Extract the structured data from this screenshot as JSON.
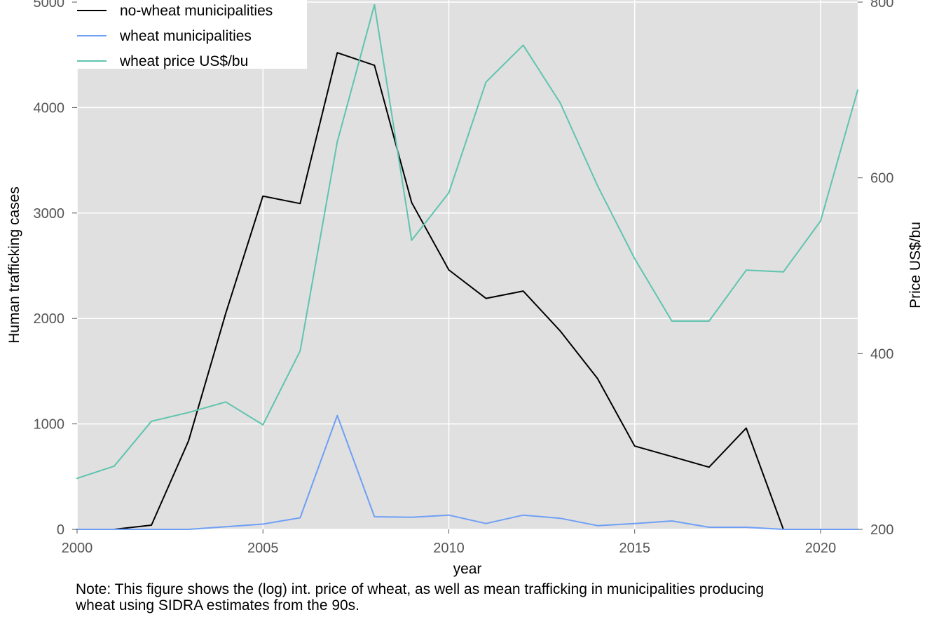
{
  "chart_data": {
    "type": "line",
    "x": [
      2000,
      2001,
      2002,
      2003,
      2004,
      2005,
      2006,
      2007,
      2008,
      2009,
      2010,
      2011,
      2012,
      2013,
      2014,
      2015,
      2016,
      2017,
      2018,
      2019,
      2020,
      2021
    ],
    "series": [
      {
        "name": "no-wheat municipalities",
        "axis": "left",
        "color": "#000000",
        "values": [
          0,
          0,
          40,
          840,
          2050,
          3160,
          3090,
          4520,
          4400,
          3100,
          2460,
          2190,
          2260,
          1880,
          1430,
          790,
          690,
          590,
          960,
          0,
          null,
          null
        ]
      },
      {
        "name": "wheat municipalities",
        "axis": "left",
        "color": "#6f9ff5",
        "values": [
          0,
          0,
          0,
          0,
          25,
          50,
          110,
          1080,
          120,
          115,
          135,
          55,
          135,
          105,
          35,
          55,
          80,
          20,
          20,
          0,
          0,
          0
        ]
      },
      {
        "name": "wheat price US$/bu",
        "axis": "right",
        "color": "#5fc4ae",
        "values": [
          258,
          272,
          323,
          333,
          345,
          319,
          403,
          641,
          797,
          529,
          583,
          709,
          751,
          685,
          591,
          508,
          437,
          437,
          495,
          493,
          551,
          700
        ]
      }
    ],
    "xlabel": "year",
    "ylabel": "Human trafficking cases",
    "ylabel_right": "Price US$/bu",
    "xlim": [
      2000,
      2021
    ],
    "ylim": [
      0,
      5000
    ],
    "ylim_right": [
      200,
      800
    ],
    "x_ticks": [
      2000,
      2005,
      2010,
      2015,
      2020
    ],
    "y_ticks": [
      0,
      1000,
      2000,
      3000,
      4000,
      5000
    ],
    "y_ticks_right": [
      200,
      400,
      600,
      800
    ],
    "grid": true,
    "legend_position": "top-left",
    "background": "#e0e0e0"
  },
  "note": {
    "line1": "Note: This figure shows the (log) int. price of wheat, as well as mean trafficking in municipalities producing",
    "line2": " wheat using SIDRA estimates from the 90s."
  }
}
